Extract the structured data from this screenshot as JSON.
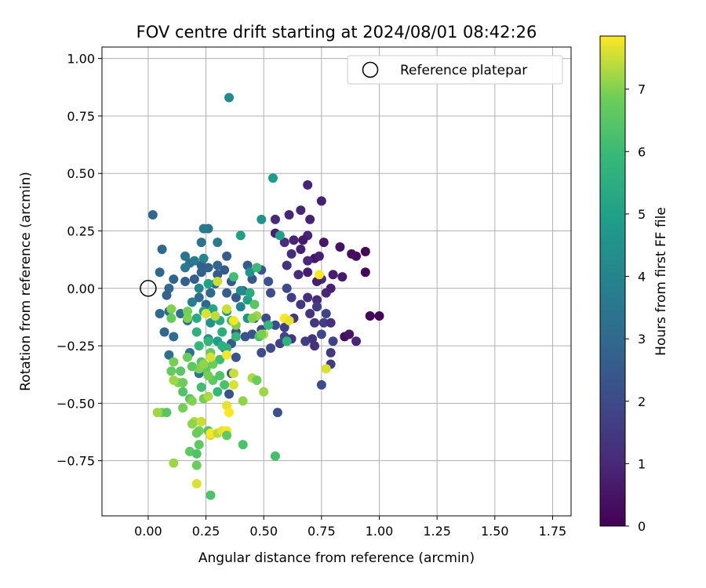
{
  "chart_data": {
    "type": "scatter",
    "title": "FOV centre drift starting at 2024/08/01 08:42:26",
    "xlabel": "Angular distance from reference (arcmin)",
    "ylabel": "Rotation from reference (arcmin)",
    "xlim": [
      -0.2,
      1.83
    ],
    "ylim": [
      -0.99,
      1.05
    ],
    "xticks": [
      "0.00",
      "0.25",
      "0.50",
      "0.75",
      "1.00",
      "1.25",
      "1.50",
      "1.75"
    ],
    "xtick_values": [
      0,
      0.25,
      0.5,
      0.75,
      1.0,
      1.25,
      1.5,
      1.75
    ],
    "yticks": [
      "1.00",
      "0.75",
      "0.50",
      "0.25",
      "0.00",
      "−0.25",
      "−0.50",
      "−0.75"
    ],
    "ytick_values": [
      1.0,
      0.75,
      0.5,
      0.25,
      0,
      -0.25,
      -0.5,
      -0.75
    ],
    "grid": true,
    "colormap": "viridis",
    "colorbar": {
      "label": "Hours from first FF file",
      "min": 0,
      "max": 7.85,
      "ticks": [
        "0",
        "1",
        "2",
        "3",
        "4",
        "5",
        "6",
        "7"
      ],
      "tick_values": [
        0,
        1,
        2,
        3,
        4,
        5,
        6,
        7
      ]
    },
    "legend": {
      "placement": "top-right",
      "label": "Reference platepar"
    },
    "reference_point": {
      "x": 0.0,
      "y": 0.0
    },
    "points": [
      {
        "x": 0.96,
        "y": -0.12,
        "h": 0.05
      },
      {
        "x": 1.0,
        "y": -0.12,
        "h": 0.1
      },
      {
        "x": 0.94,
        "y": 0.16,
        "h": 0.1
      },
      {
        "x": 0.94,
        "y": 0.07,
        "h": 0.15
      },
      {
        "x": 0.9,
        "y": 0.14,
        "h": 0.2
      },
      {
        "x": 0.88,
        "y": 0.15,
        "h": 0.35
      },
      {
        "x": 0.83,
        "y": 0.18,
        "h": 0.4
      },
      {
        "x": 0.85,
        "y": -0.21,
        "h": 0.3
      },
      {
        "x": 0.87,
        "y": -0.2,
        "h": 0.5
      },
      {
        "x": 0.9,
        "y": -0.23,
        "h": 0.9
      },
      {
        "x": 0.84,
        "y": 0.05,
        "h": 0.6
      },
      {
        "x": 0.8,
        "y": 0.06,
        "h": 0.7
      },
      {
        "x": 0.79,
        "y": 0.0,
        "h": 0.8
      },
      {
        "x": 0.77,
        "y": -0.02,
        "h": 0.9
      },
      {
        "x": 0.76,
        "y": 0.2,
        "h": 0.5
      },
      {
        "x": 0.75,
        "y": 0.04,
        "h": 1.1
      },
      {
        "x": 0.73,
        "y": 0.03,
        "h": 0.7
      },
      {
        "x": 0.72,
        "y": 0.13,
        "h": 0.5
      },
      {
        "x": 0.74,
        "y": 0.14,
        "h": 0.8
      },
      {
        "x": 0.69,
        "y": 0.45,
        "h": 0.9
      },
      {
        "x": 0.75,
        "y": 0.38,
        "h": 0.8
      },
      {
        "x": 0.66,
        "y": 0.34,
        "h": 0.9
      },
      {
        "x": 0.7,
        "y": 0.3,
        "h": 0.8
      },
      {
        "x": 0.61,
        "y": 0.32,
        "h": 0.9
      },
      {
        "x": 0.55,
        "y": 0.3,
        "h": 1.0
      },
      {
        "x": 0.69,
        "y": 0.23,
        "h": 0.9
      },
      {
        "x": 0.67,
        "y": 0.21,
        "h": 0.6
      },
      {
        "x": 0.63,
        "y": 0.21,
        "h": 0.9
      },
      {
        "x": 0.55,
        "y": 0.24,
        "h": 0.8
      },
      {
        "x": 0.59,
        "y": 0.2,
        "h": 1.2
      },
      {
        "x": 0.62,
        "y": 0.15,
        "h": 1.1
      },
      {
        "x": 0.66,
        "y": 0.17,
        "h": 0.8
      },
      {
        "x": 0.69,
        "y": 0.12,
        "h": 1.0
      },
      {
        "x": 0.65,
        "y": 0.06,
        "h": 1.1
      },
      {
        "x": 0.69,
        "y": 0.07,
        "h": 0.7
      },
      {
        "x": 0.6,
        "y": 0.1,
        "h": 1.3
      },
      {
        "x": 0.62,
        "y": -0.04,
        "h": 1.7
      },
      {
        "x": 0.66,
        "y": -0.07,
        "h": 1.4
      },
      {
        "x": 0.69,
        "y": -0.04,
        "h": 1.2
      },
      {
        "x": 0.73,
        "y": -0.05,
        "h": 1.1
      },
      {
        "x": 0.73,
        "y": -0.08,
        "h": 1.6
      },
      {
        "x": 0.7,
        "y": -0.11,
        "h": 1.3
      },
      {
        "x": 0.76,
        "y": -0.15,
        "h": 1.6
      },
      {
        "x": 0.72,
        "y": -0.15,
        "h": 1.4
      },
      {
        "x": 0.77,
        "y": -0.11,
        "h": 1.8
      },
      {
        "x": 0.79,
        "y": -0.15,
        "h": 1.2
      },
      {
        "x": 0.75,
        "y": -0.2,
        "h": 1.9
      },
      {
        "x": 0.71,
        "y": -0.22,
        "h": 1.3
      },
      {
        "x": 0.72,
        "y": -0.25,
        "h": 1.3
      },
      {
        "x": 0.8,
        "y": -0.23,
        "h": 1.8
      },
      {
        "x": 0.79,
        "y": -0.28,
        "h": 1.5
      },
      {
        "x": 0.79,
        "y": -0.33,
        "h": 1.6
      },
      {
        "x": 0.75,
        "y": -0.42,
        "h": 2.0
      },
      {
        "x": 0.68,
        "y": -0.23,
        "h": 1.6
      },
      {
        "x": 0.62,
        "y": -0.22,
        "h": 1.4
      },
      {
        "x": 0.63,
        "y": -0.13,
        "h": 1.5
      },
      {
        "x": 0.59,
        "y": -0.17,
        "h": 1.7
      },
      {
        "x": 0.59,
        "y": -0.21,
        "h": 1.9
      },
      {
        "x": 0.57,
        "y": -0.24,
        "h": 1.8
      },
      {
        "x": 0.53,
        "y": -0.26,
        "h": 2.0
      },
      {
        "x": 0.49,
        "y": -0.28,
        "h": 2.1
      },
      {
        "x": 0.55,
        "y": -0.16,
        "h": 2.1
      },
      {
        "x": 0.51,
        "y": -0.13,
        "h": 2.0
      },
      {
        "x": 0.46,
        "y": -0.13,
        "h": 2.2
      },
      {
        "x": 0.45,
        "y": -0.2,
        "h": 2.2
      },
      {
        "x": 0.49,
        "y": -0.18,
        "h": 2.0
      },
      {
        "x": 0.42,
        "y": -0.21,
        "h": 2.3
      },
      {
        "x": 0.38,
        "y": -0.19,
        "h": 2.2
      },
      {
        "x": 0.36,
        "y": -0.24,
        "h": 2.4
      },
      {
        "x": 0.38,
        "y": -0.3,
        "h": 2.3
      },
      {
        "x": 0.36,
        "y": -0.37,
        "h": 2.5
      },
      {
        "x": 0.35,
        "y": -0.46,
        "h": 2.3
      },
      {
        "x": 0.56,
        "y": -0.54,
        "h": 2.2
      },
      {
        "x": 0.53,
        "y": -0.02,
        "h": 2.1
      },
      {
        "x": 0.52,
        "y": 0.03,
        "h": 2.3
      },
      {
        "x": 0.6,
        "y": 0.0,
        "h": 2.0
      },
      {
        "x": 0.49,
        "y": 0.08,
        "h": 2.4
      },
      {
        "x": 0.43,
        "y": 0.1,
        "h": 2.5
      },
      {
        "x": 0.45,
        "y": 0.04,
        "h": 2.4
      },
      {
        "x": 0.41,
        "y": -0.01,
        "h": 2.6
      },
      {
        "x": 0.38,
        "y": -0.04,
        "h": 2.4
      },
      {
        "x": 0.34,
        "y": -0.02,
        "h": 2.6
      },
      {
        "x": 0.36,
        "y": 0.03,
        "h": 2.4
      },
      {
        "x": 0.33,
        "y": 0.08,
        "h": 2.5
      },
      {
        "x": 0.3,
        "y": 0.06,
        "h": 2.5
      },
      {
        "x": 0.34,
        "y": 0.14,
        "h": 2.6
      },
      {
        "x": 0.3,
        "y": 0.1,
        "h": 2.9
      },
      {
        "x": 0.26,
        "y": 0.09,
        "h": 2.8
      },
      {
        "x": 0.23,
        "y": 0.1,
        "h": 2.7
      },
      {
        "x": 0.23,
        "y": 0.07,
        "h": 2.8
      },
      {
        "x": 0.2,
        "y": 0.04,
        "h": 2.6
      },
      {
        "x": 0.16,
        "y": 0.03,
        "h": 2.7
      },
      {
        "x": 0.11,
        "y": 0.04,
        "h": 2.8
      },
      {
        "x": 0.09,
        "y": 0.0,
        "h": 2.9
      },
      {
        "x": 0.08,
        "y": -0.03,
        "h": 2.8
      },
      {
        "x": 0.05,
        "y": 0.07,
        "h": 3.0
      },
      {
        "x": 0.06,
        "y": 0.17,
        "h": 3.0
      },
      {
        "x": 0.02,
        "y": 0.32,
        "h": 3.0
      },
      {
        "x": 0.05,
        "y": -0.11,
        "h": 3.0
      },
      {
        "x": 0.07,
        "y": -0.19,
        "h": 2.9
      },
      {
        "x": 0.09,
        "y": -0.1,
        "h": 3.0
      },
      {
        "x": 0.11,
        "y": -0.21,
        "h": 3.1
      },
      {
        "x": 0.09,
        "y": -0.29,
        "h": 3.2
      },
      {
        "x": 0.14,
        "y": -0.11,
        "h": 3.3
      },
      {
        "x": 0.17,
        "y": -0.14,
        "h": 3.2
      },
      {
        "x": 0.18,
        "y": -0.28,
        "h": 3.3
      },
      {
        "x": 0.22,
        "y": -0.37,
        "h": 3.4
      },
      {
        "x": 0.22,
        "y": -0.04,
        "h": 3.1
      },
      {
        "x": 0.25,
        "y": -0.07,
        "h": 3.0
      },
      {
        "x": 0.27,
        "y": -0.02,
        "h": 2.9
      },
      {
        "x": 0.29,
        "y": 0.02,
        "h": 3.1
      },
      {
        "x": 0.26,
        "y": 0.26,
        "h": 3.4
      },
      {
        "x": 0.24,
        "y": 0.26,
        "h": 3.5
      },
      {
        "x": 0.3,
        "y": 0.2,
        "h": 3.6
      },
      {
        "x": 0.23,
        "y": 0.2,
        "h": 3.3
      },
      {
        "x": 0.18,
        "y": 0.11,
        "h": 3.2
      },
      {
        "x": 0.16,
        "y": 0.14,
        "h": 3.4
      },
      {
        "x": 0.16,
        "y": 0.09,
        "h": 3.6
      },
      {
        "x": 0.2,
        "y": 0.12,
        "h": 3.7
      },
      {
        "x": 0.24,
        "y": 0.13,
        "h": 4.0
      },
      {
        "x": 0.22,
        "y": 0.0,
        "h": 4.1
      },
      {
        "x": 0.19,
        "y": -0.06,
        "h": 3.8
      },
      {
        "x": 0.35,
        "y": 0.83,
        "h": 4.2
      },
      {
        "x": 0.54,
        "y": 0.48,
        "h": 4.8
      },
      {
        "x": 0.57,
        "y": 0.23,
        "h": 5.0
      },
      {
        "x": 0.49,
        "y": 0.3,
        "h": 4.5
      },
      {
        "x": 0.4,
        "y": 0.23,
        "h": 5.0
      },
      {
        "x": 0.44,
        "y": 0.07,
        "h": 4.6
      },
      {
        "x": 0.4,
        "y": -0.01,
        "h": 4.3
      },
      {
        "x": 0.43,
        "y": -0.05,
        "h": 5.0
      },
      {
        "x": 0.4,
        "y": -0.08,
        "h": 4.0
      },
      {
        "x": 0.43,
        "y": -0.13,
        "h": 4.4
      },
      {
        "x": 0.34,
        "y": -0.1,
        "h": 4.7
      },
      {
        "x": 0.27,
        "y": -0.15,
        "h": 4.5
      },
      {
        "x": 0.26,
        "y": -0.22,
        "h": 4.2
      },
      {
        "x": 0.3,
        "y": -0.23,
        "h": 4.9
      },
      {
        "x": 0.33,
        "y": -0.26,
        "h": 4.1
      },
      {
        "x": 0.32,
        "y": -0.19,
        "h": 5.5
      },
      {
        "x": 0.21,
        "y": -0.19,
        "h": 5.6
      },
      {
        "x": 0.21,
        "y": -0.13,
        "h": 5.4
      },
      {
        "x": 0.24,
        "y": -0.1,
        "h": 5.1
      },
      {
        "x": 0.28,
        "y": -0.09,
        "h": 5.2
      },
      {
        "x": 0.31,
        "y": -0.14,
        "h": 5.3
      },
      {
        "x": 0.26,
        "y": 0.02,
        "h": 5.0
      },
      {
        "x": 0.37,
        "y": 0.05,
        "h": 6.1
      },
      {
        "x": 0.47,
        "y": 0.09,
        "h": 6.0
      },
      {
        "x": 0.44,
        "y": -0.02,
        "h": 5.4
      },
      {
        "x": 0.46,
        "y": -0.07,
        "h": 6.5
      },
      {
        "x": 0.52,
        "y": -0.16,
        "h": 5.9
      },
      {
        "x": 0.6,
        "y": -0.23,
        "h": 5.7
      },
      {
        "x": 0.48,
        "y": -0.21,
        "h": 6.3
      },
      {
        "x": 0.38,
        "y": -0.21,
        "h": 5.8
      },
      {
        "x": 0.36,
        "y": -0.14,
        "h": 6.2
      },
      {
        "x": 0.34,
        "y": -0.26,
        "h": 5.7
      },
      {
        "x": 0.31,
        "y": -0.31,
        "h": 6.1
      },
      {
        "x": 0.32,
        "y": -0.25,
        "h": 5.6
      },
      {
        "x": 0.26,
        "y": -0.23,
        "h": 5.8
      },
      {
        "x": 0.22,
        "y": -0.25,
        "h": 5.9
      },
      {
        "x": 0.23,
        "y": -0.32,
        "h": 6.4
      },
      {
        "x": 0.27,
        "y": -0.28,
        "h": 6.7
      },
      {
        "x": 0.25,
        "y": -0.35,
        "h": 6.6
      },
      {
        "x": 0.22,
        "y": -0.35,
        "h": 7.0
      },
      {
        "x": 0.19,
        "y": -0.34,
        "h": 6.6
      },
      {
        "x": 0.17,
        "y": -0.3,
        "h": 6.8
      },
      {
        "x": 0.11,
        "y": -0.32,
        "h": 6.9
      },
      {
        "x": 0.1,
        "y": -0.36,
        "h": 6.7
      },
      {
        "x": 0.14,
        "y": -0.36,
        "h": 6.5
      },
      {
        "x": 0.13,
        "y": -0.41,
        "h": 7.0
      },
      {
        "x": 0.11,
        "y": -0.4,
        "h": 7.2
      },
      {
        "x": 0.15,
        "y": -0.41,
        "h": 6.8
      },
      {
        "x": 0.15,
        "y": -0.45,
        "h": 6.4
      },
      {
        "x": 0.18,
        "y": -0.48,
        "h": 6.5
      },
      {
        "x": 0.24,
        "y": -0.48,
        "h": 6.9
      },
      {
        "x": 0.26,
        "y": -0.47,
        "h": 7.3
      },
      {
        "x": 0.23,
        "y": -0.43,
        "h": 6.1
      },
      {
        "x": 0.28,
        "y": -0.4,
        "h": 6.6
      },
      {
        "x": 0.31,
        "y": -0.38,
        "h": 6.4
      },
      {
        "x": 0.28,
        "y": -0.33,
        "h": 6.8
      },
      {
        "x": 0.27,
        "y": -0.3,
        "h": 7.6
      },
      {
        "x": 0.24,
        "y": -0.33,
        "h": 7.1
      },
      {
        "x": 0.26,
        "y": -0.38,
        "h": 6.9
      },
      {
        "x": 0.33,
        "y": -0.42,
        "h": 6.3
      },
      {
        "x": 0.3,
        "y": -0.45,
        "h": 5.9
      },
      {
        "x": 0.06,
        "y": -0.54,
        "h": 7.0
      },
      {
        "x": 0.08,
        "y": -0.54,
        "h": 6.5
      },
      {
        "x": 0.04,
        "y": -0.54,
        "h": 7.2
      },
      {
        "x": 0.15,
        "y": -0.52,
        "h": 6.9
      },
      {
        "x": 0.19,
        "y": -0.49,
        "h": 7.0
      },
      {
        "x": 0.2,
        "y": -0.58,
        "h": 7.3
      },
      {
        "x": 0.19,
        "y": -0.59,
        "h": 7.1
      },
      {
        "x": 0.22,
        "y": -0.62,
        "h": 6.9
      },
      {
        "x": 0.23,
        "y": -0.58,
        "h": 7.5
      },
      {
        "x": 0.26,
        "y": -0.62,
        "h": 6.4
      },
      {
        "x": 0.27,
        "y": -0.64,
        "h": 7.6
      },
      {
        "x": 0.27,
        "y": -0.63,
        "h": 7.8
      },
      {
        "x": 0.3,
        "y": -0.63,
        "h": 7.4
      },
      {
        "x": 0.32,
        "y": -0.62,
        "h": 7.7
      },
      {
        "x": 0.34,
        "y": -0.62,
        "h": 7.8
      },
      {
        "x": 0.34,
        "y": -0.51,
        "h": 7.7
      },
      {
        "x": 0.35,
        "y": -0.54,
        "h": 7.9
      },
      {
        "x": 0.34,
        "y": -0.64,
        "h": 6.6
      },
      {
        "x": 0.37,
        "y": -0.42,
        "h": 7.6
      },
      {
        "x": 0.41,
        "y": -0.49,
        "h": 7.1
      },
      {
        "x": 0.45,
        "y": -0.39,
        "h": 7.3
      },
      {
        "x": 0.47,
        "y": -0.4,
        "h": 6.8
      },
      {
        "x": 0.5,
        "y": -0.45,
        "h": 7.2
      },
      {
        "x": 0.41,
        "y": -0.68,
        "h": 6.3
      },
      {
        "x": 0.55,
        "y": -0.73,
        "h": 6.2
      },
      {
        "x": 0.21,
        "y": -0.63,
        "h": 6.8
      },
      {
        "x": 0.22,
        "y": -0.68,
        "h": 6.6
      },
      {
        "x": 0.18,
        "y": -0.71,
        "h": 6.6
      },
      {
        "x": 0.21,
        "y": -0.72,
        "h": 6.4
      },
      {
        "x": 0.21,
        "y": -0.77,
        "h": 6.8
      },
      {
        "x": 0.11,
        "y": -0.76,
        "h": 7.2
      },
      {
        "x": 0.21,
        "y": -0.85,
        "h": 7.6
      },
      {
        "x": 0.27,
        "y": -0.9,
        "h": 6.3
      },
      {
        "x": 0.29,
        "y": -0.12,
        "h": 7.4
      },
      {
        "x": 0.25,
        "y": -0.11,
        "h": 7.6
      },
      {
        "x": 0.17,
        "y": -0.13,
        "h": 7.0
      },
      {
        "x": 0.17,
        "y": -0.1,
        "h": 6.9
      },
      {
        "x": 0.1,
        "y": -0.09,
        "h": 7.0
      },
      {
        "x": 0.1,
        "y": -0.13,
        "h": 6.7
      },
      {
        "x": 0.34,
        "y": -0.09,
        "h": 7.5
      },
      {
        "x": 0.38,
        "y": -0.16,
        "h": 7.0
      },
      {
        "x": 0.47,
        "y": -0.12,
        "h": 7.2
      },
      {
        "x": 0.5,
        "y": -0.2,
        "h": 7.4
      },
      {
        "x": 0.3,
        "y": 0.03,
        "h": 7.5
      },
      {
        "x": 0.37,
        "y": -0.14,
        "h": 7.8
      },
      {
        "x": 0.59,
        "y": -0.13,
        "h": 7.9
      },
      {
        "x": 0.61,
        "y": -0.14,
        "h": 7.7
      },
      {
        "x": 0.74,
        "y": 0.06,
        "h": 7.9
      },
      {
        "x": 0.77,
        "y": -0.35,
        "h": 7.6
      },
      {
        "x": 0.45,
        "y": -0.13,
        "h": 7.0
      },
      {
        "x": 0.49,
        "y": -0.2,
        "h": 6.9
      },
      {
        "x": 0.34,
        "y": -0.29,
        "h": 7.8
      },
      {
        "x": 0.37,
        "y": -0.37,
        "h": 7.5
      }
    ]
  }
}
